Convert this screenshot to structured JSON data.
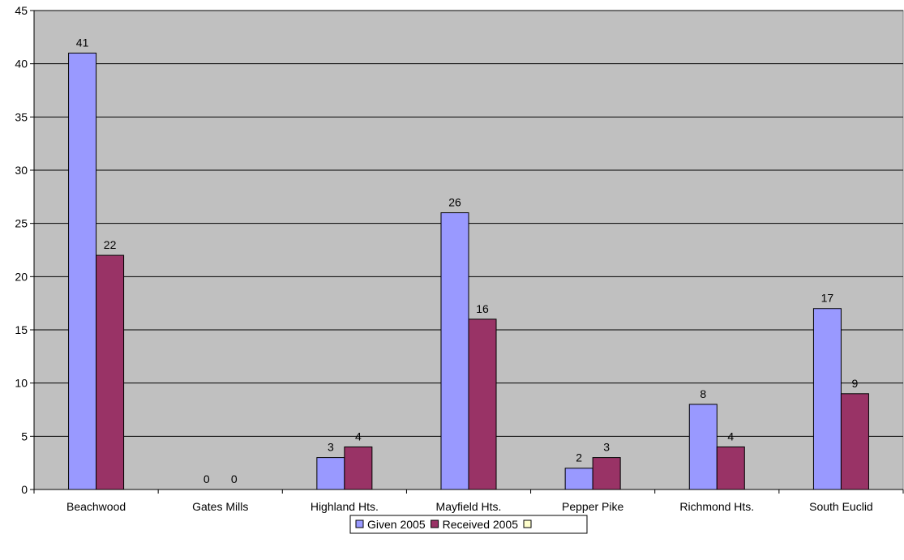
{
  "chart_data": {
    "type": "bar",
    "categories": [
      "Beachwood",
      "Gates Mills",
      "Highland Hts.",
      "Mayfield Hts.",
      "Pepper Pike",
      "Richmond Hts.",
      "South Euclid"
    ],
    "series": [
      {
        "name": "Given 2005",
        "values": [
          41,
          0,
          3,
          26,
          2,
          8,
          17
        ],
        "color": "#9999ff"
      },
      {
        "name": "Received 2005",
        "values": [
          22,
          0,
          4,
          16,
          3,
          4,
          9
        ],
        "color": "#993366"
      }
    ],
    "legend_extra": {
      "name": "",
      "color": "#ffffcc"
    },
    "ylim": [
      0,
      45
    ],
    "yticks": [
      0,
      5,
      10,
      15,
      20,
      25,
      30,
      35,
      40,
      45
    ],
    "plot_background": "#c0c0c0",
    "grid": true,
    "legend_position": "bottom"
  }
}
